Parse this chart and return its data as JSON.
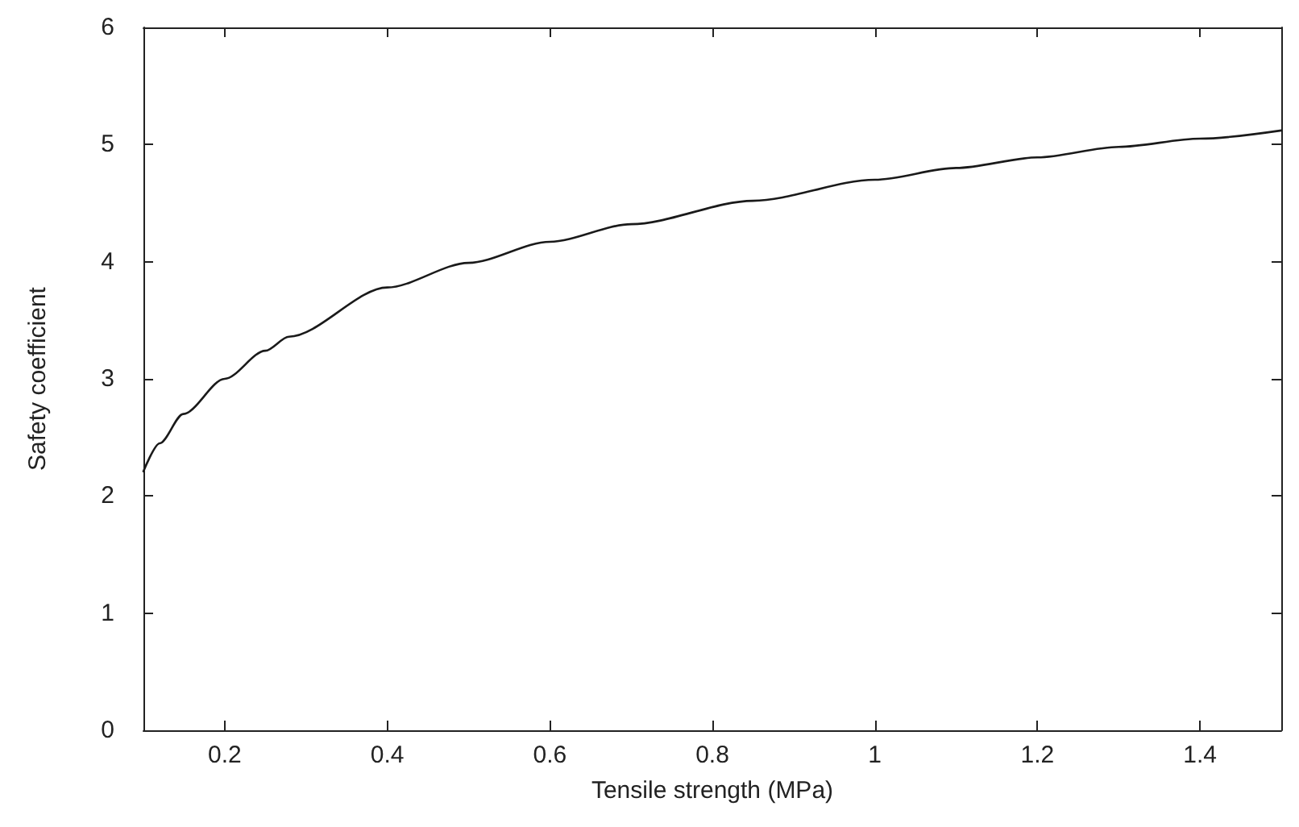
{
  "chart_data": {
    "type": "line",
    "xlabel": "Tensile strength (MPa)",
    "ylabel": "Safety coefficient",
    "x": [
      0.1,
      0.12,
      0.149,
      0.2,
      0.25,
      0.279,
      0.4,
      0.5,
      0.6,
      0.7,
      0.85,
      1.0,
      1.1,
      1.2,
      1.3,
      1.4,
      1.5
    ],
    "series": [
      {
        "color": "#1a1a1a",
        "values": [
          2.21,
          2.45,
          2.7,
          3.0,
          3.24,
          3.36,
          3.78,
          3.99,
          4.17,
          4.32,
          4.52,
          4.7,
          4.8,
          4.89,
          4.98,
          5.05,
          5.12
        ]
      }
    ],
    "xlim": [
      0.1,
      1.5
    ],
    "xticks": [
      0.2,
      0.4,
      0.6,
      0.8,
      {
        "value": 1,
        "label": "1"
      },
      1.2,
      1.4
    ],
    "ylim": [
      0,
      6
    ],
    "yticks": [
      0,
      1,
      2,
      3,
      4,
      5,
      6
    ],
    "grid": false,
    "marker": "none",
    "line_style": "solid"
  }
}
